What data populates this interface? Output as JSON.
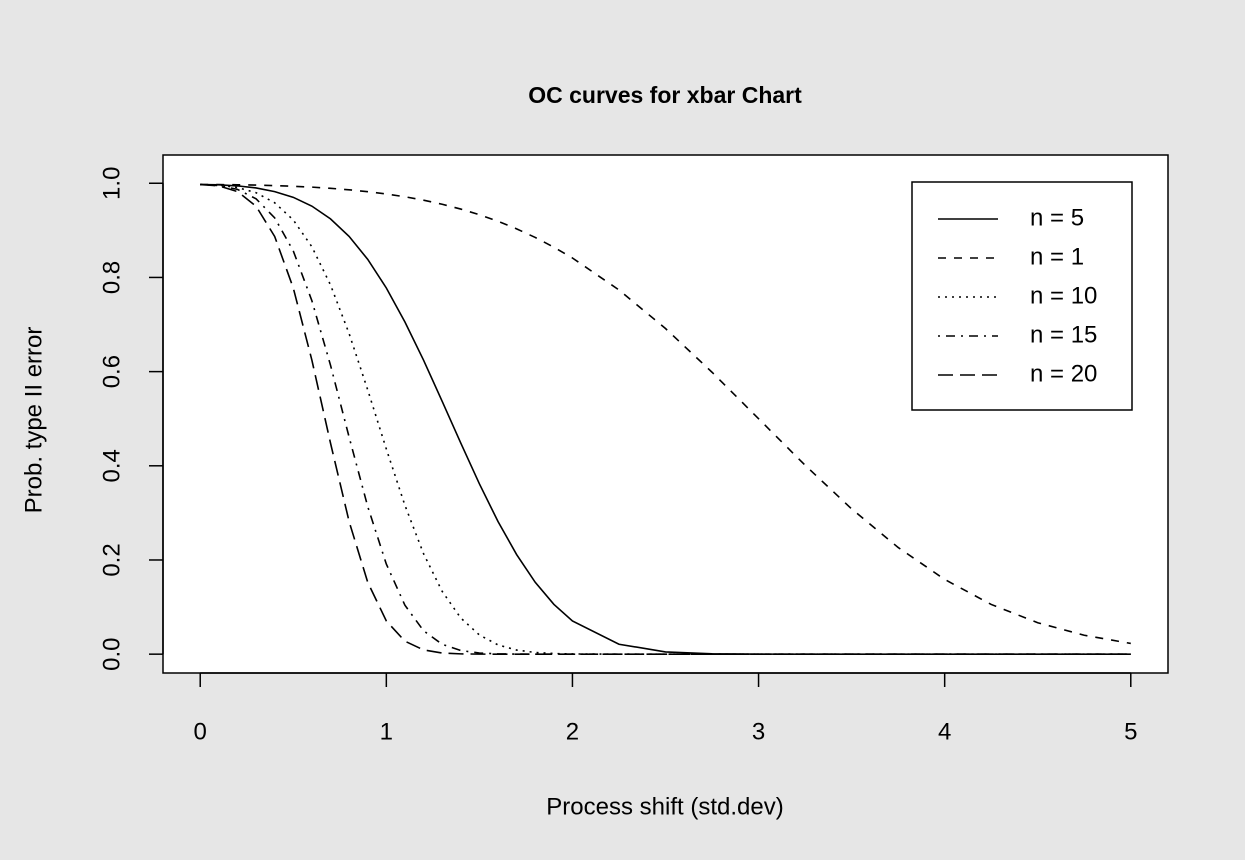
{
  "chart_data": {
    "type": "line",
    "title": "OC curves for xbar Chart",
    "x_label": "Process shift (std.dev)",
    "y_label": "Prob. type II error",
    "x": [
      0,
      0.1,
      0.2,
      0.3,
      0.4,
      0.5,
      0.6,
      0.7,
      0.8,
      0.9,
      1.0,
      1.1,
      1.2,
      1.3,
      1.4,
      1.5,
      1.6,
      1.7,
      1.8,
      1.9,
      2.0,
      2.25,
      2.5,
      2.75,
      3.0,
      3.25,
      3.5,
      3.75,
      4.0,
      4.25,
      4.5,
      4.75,
      5.0
    ],
    "series": [
      {
        "name": "n = 5",
        "color": "#000000",
        "linestyle": "solid",
        "values": [
          0.9973,
          0.9966,
          0.9944,
          0.99,
          0.9823,
          0.9701,
          0.9514,
          0.9244,
          0.8871,
          0.8384,
          0.7776,
          0.7054,
          0.6243,
          0.537,
          0.4483,
          0.3617,
          0.2817,
          0.2115,
          0.1527,
          0.1059,
          0.0705,
          0.0211,
          0.0048,
          0.0008,
          0.0001,
          0,
          0,
          0,
          0,
          0,
          0,
          0,
          0
        ]
      },
      {
        "name": "n = 1",
        "color": "#000000",
        "linestyle": "dashed",
        "values": [
          0.9973,
          0.9972,
          0.9968,
          0.9961,
          0.995,
          0.9936,
          0.9918,
          0.9893,
          0.9861,
          0.9821,
          0.9772,
          0.9713,
          0.9641,
          0.9554,
          0.9452,
          0.9332,
          0.9192,
          0.9032,
          0.8849,
          0.8643,
          0.8413,
          0.7734,
          0.6915,
          0.5987,
          0.5,
          0.4013,
          0.3085,
          0.2266,
          0.1587,
          0.1056,
          0.0668,
          0.0401,
          0.0228
        ]
      },
      {
        "name": "n = 10",
        "color": "#000000",
        "linestyle": "dotted",
        "values": [
          0.9973,
          0.9959,
          0.9909,
          0.9799,
          0.9586,
          0.9221,
          0.865,
          0.7841,
          0.6808,
          0.5612,
          0.4356,
          0.316,
          0.2133,
          0.1333,
          0.0768,
          0.0407,
          0.0197,
          0.0087,
          0.0036,
          0.0013,
          0.0004,
          0,
          0,
          0,
          0,
          0,
          0,
          0,
          0,
          0,
          0,
          0,
          0
        ]
      },
      {
        "name": "n = 15",
        "color": "#000000",
        "linestyle": "dotdash",
        "values": [
          0.9973,
          0.9952,
          0.987,
          0.967,
          0.9266,
          0.8563,
          0.7505,
          0.6137,
          0.461,
          0.3135,
          0.1913,
          0.1038,
          0.0497,
          0.0209,
          0.0077,
          0.0025,
          0.0007,
          0.0002,
          0,
          0,
          0,
          0,
          0,
          0,
          0,
          0,
          0,
          0,
          0,
          0,
          0,
          0,
          0
        ]
      },
      {
        "name": "n = 20",
        "color": "#000000",
        "linestyle": "longdash",
        "values": [
          0.9973,
          0.9944,
          0.9824,
          0.9513,
          0.8871,
          0.7776,
          0.6243,
          0.4483,
          0.2817,
          0.1527,
          0.0705,
          0.0275,
          0.009,
          0.0024,
          0.0006,
          0.0001,
          0,
          0,
          0,
          0,
          0,
          0,
          0,
          0,
          0,
          0,
          0,
          0,
          0,
          0,
          0,
          0,
          0
        ]
      }
    ],
    "xlim": [
      -0.2,
      5.2
    ],
    "ylim": [
      -0.04,
      1.06
    ],
    "xticks": [
      0,
      1,
      2,
      3,
      4,
      5
    ],
    "yticks": [
      {
        "value": 0,
        "label": "0.0"
      },
      0.2,
      0.4,
      0.6,
      0.8,
      {
        "value": 1,
        "label": "1.0"
      }
    ],
    "legend": "top-right"
  }
}
